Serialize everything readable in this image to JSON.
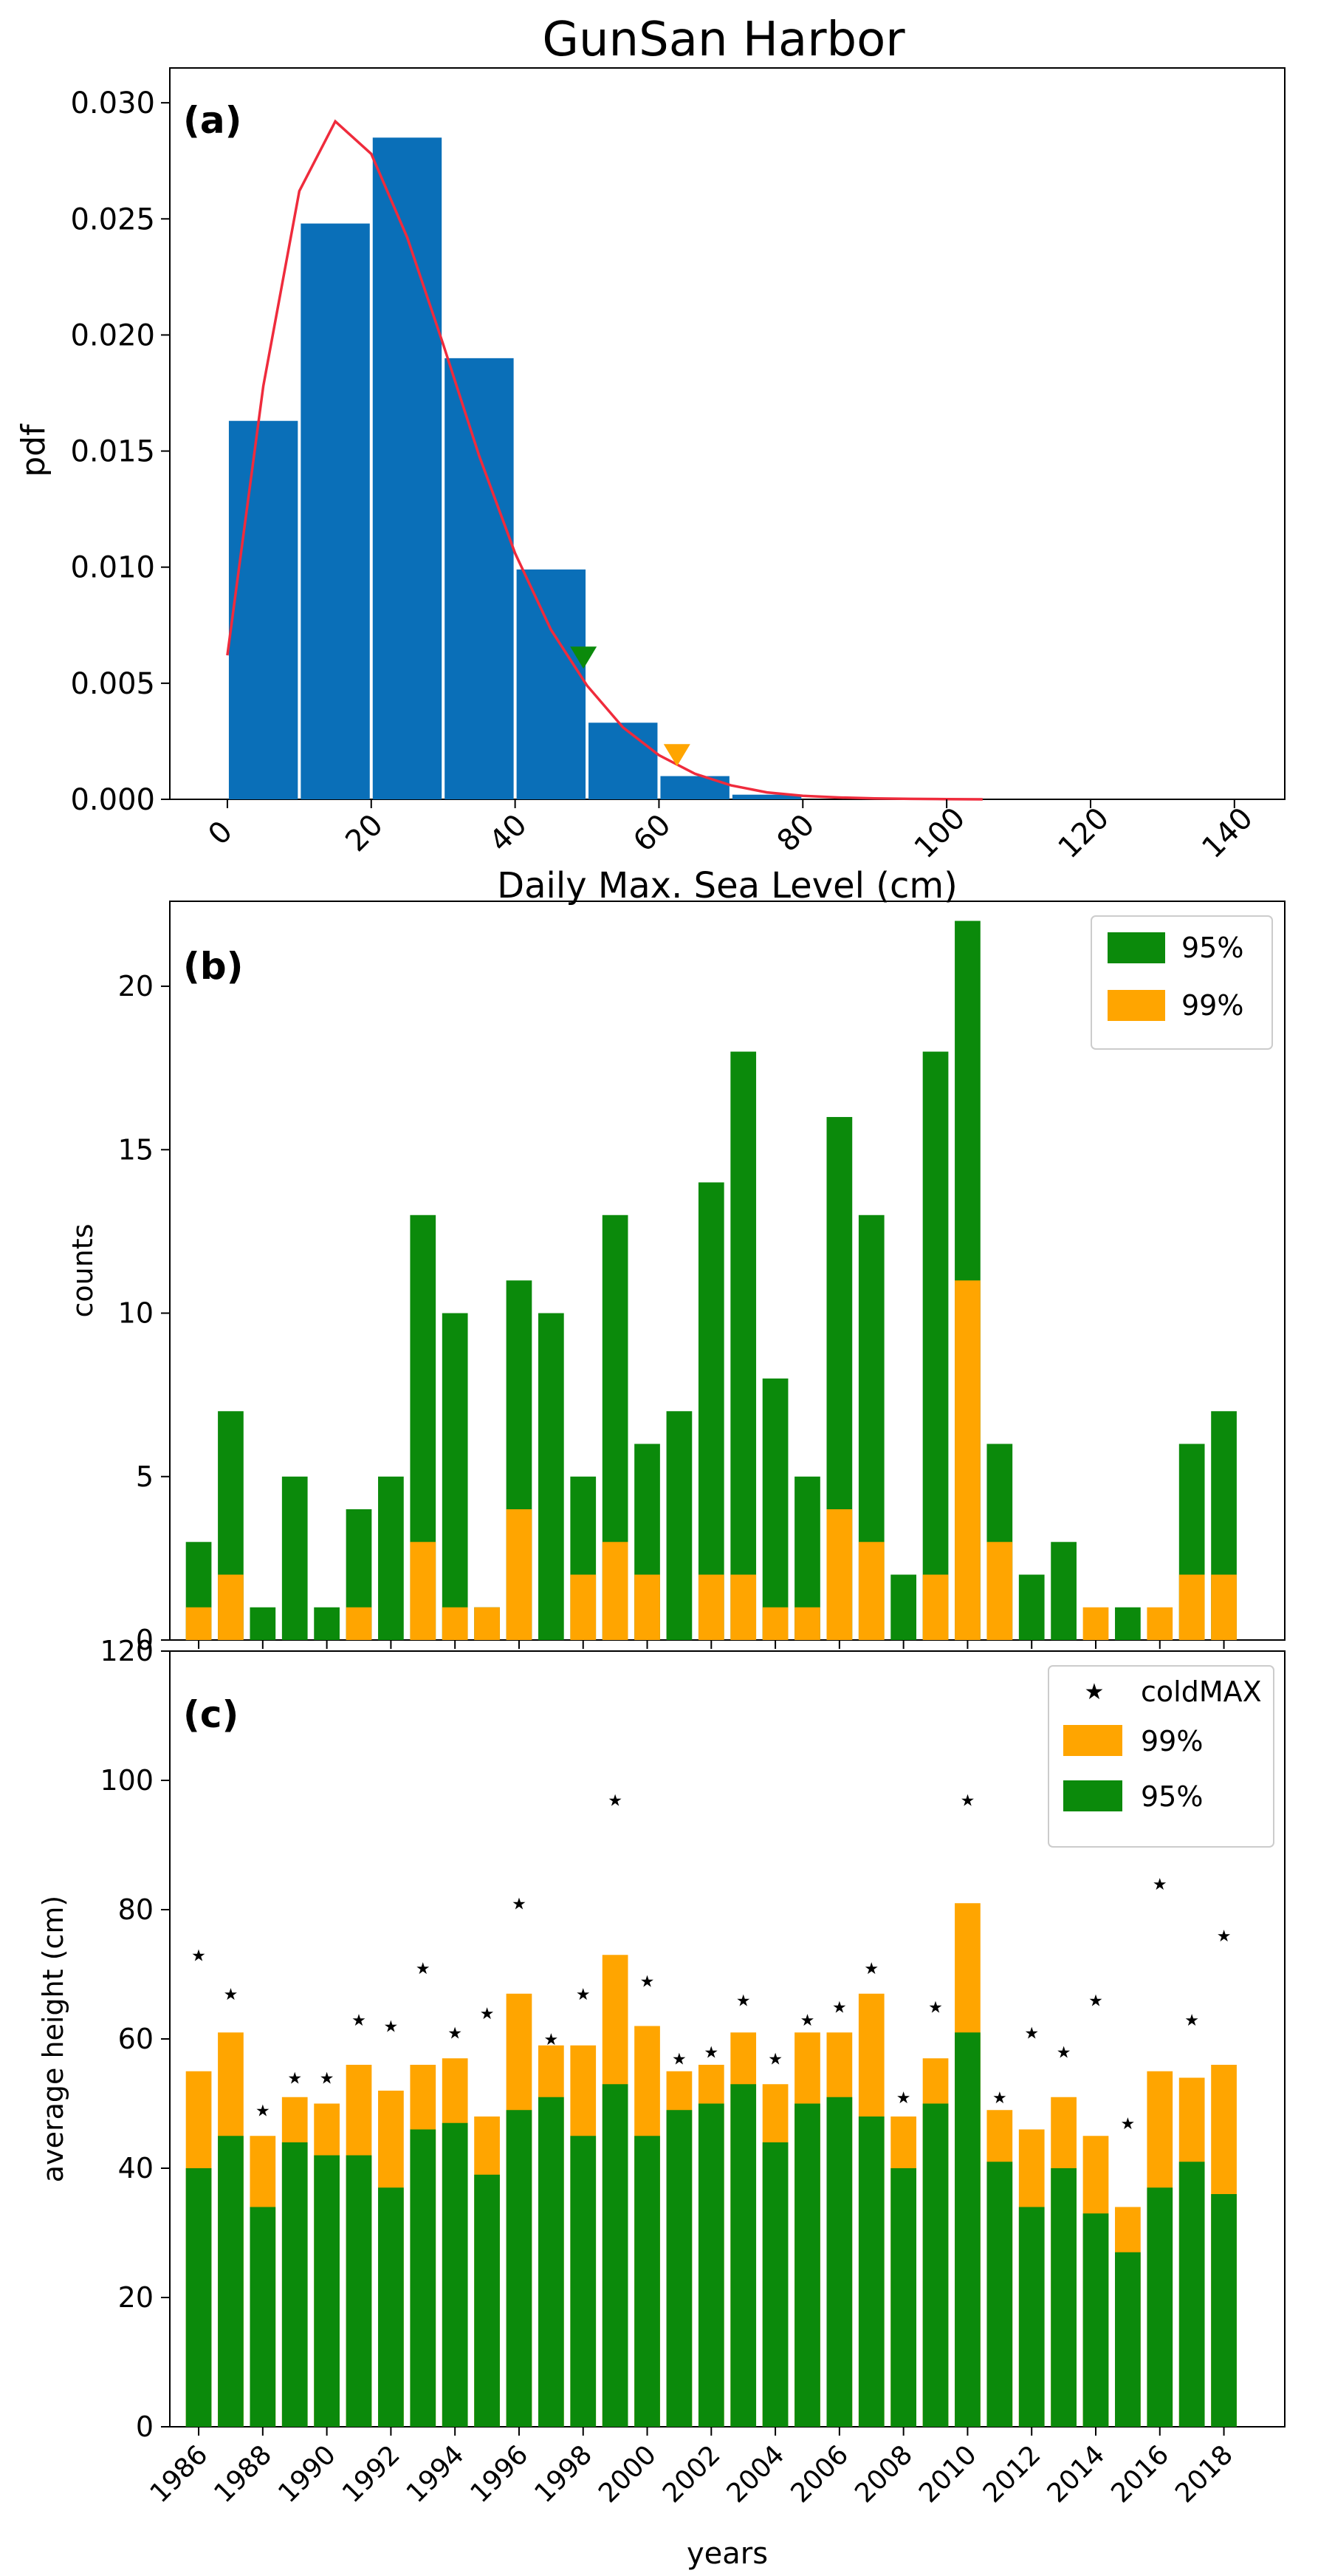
{
  "title": "GunSan Harbor",
  "colors": {
    "hist": "#0a6fb8",
    "curve": "#ef2b3c",
    "green": "#0b8a0b",
    "orange": "#ffa500",
    "star": "#ef1f1f"
  },
  "chart_data": [
    {
      "panel": "a",
      "label": "(a)",
      "type": "bar",
      "xlabel": "Daily Max. Sea Level (cm)",
      "ylabel": "pdf",
      "xlim": [
        -8,
        147
      ],
      "ylim": [
        0,
        0.0315
      ],
      "xticks": [
        "0",
        "20",
        "40",
        "60",
        "80",
        "100",
        "120",
        "140"
      ],
      "xtick_values": [
        0,
        20,
        40,
        60,
        80,
        100,
        120,
        140
      ],
      "yticks": [
        "0.000",
        "0.005",
        "0.010",
        "0.015",
        "0.020",
        "0.025",
        "0.030"
      ],
      "ytick_values": [
        0,
        0.005,
        0.01,
        0.015,
        0.02,
        0.025,
        0.03
      ],
      "bins": [
        {
          "left": 0,
          "right": 10,
          "value": 0.0163
        },
        {
          "left": 10,
          "right": 20,
          "value": 0.0248
        },
        {
          "left": 20,
          "right": 30,
          "value": 0.0285
        },
        {
          "left": 30,
          "right": 40,
          "value": 0.019
        },
        {
          "left": 40,
          "right": 50,
          "value": 0.0099
        },
        {
          "left": 50,
          "right": 60,
          "value": 0.0033
        },
        {
          "left": 60,
          "right": 70,
          "value": 0.001
        },
        {
          "left": 70,
          "right": 80,
          "value": 0.0002
        }
      ],
      "curve": {
        "name": "fitted pdf",
        "x": [
          0,
          5,
          10,
          15,
          20,
          25,
          30,
          35,
          40,
          45,
          50,
          55,
          60,
          65,
          70,
          75,
          80,
          85,
          90,
          95,
          100,
          105
        ],
        "y": [
          0.0062,
          0.0178,
          0.0262,
          0.0292,
          0.0278,
          0.0242,
          0.0196,
          0.0148,
          0.0106,
          0.0073,
          0.0049,
          0.0031,
          0.0019,
          0.0011,
          0.0006,
          0.0003,
          0.00015,
          8e-05,
          4e-05,
          2e-05,
          1e-05,
          0
        ]
      },
      "markers": [
        {
          "name": "95% threshold",
          "x": 49.5,
          "y": 0.0061,
          "color": "green"
        },
        {
          "name": "99% threshold",
          "x": 62.5,
          "y": 0.0019,
          "color": "orange"
        }
      ]
    },
    {
      "panel": "b",
      "label": "(b)",
      "type": "bar",
      "ylabel": "counts",
      "ylim": [
        0,
        22.6
      ],
      "yticks": [
        "0",
        "5",
        "10",
        "15",
        "20"
      ],
      "ytick_values": [
        0,
        5,
        10,
        15,
        20
      ],
      "categories": [
        1986,
        1987,
        1988,
        1989,
        1990,
        1991,
        1992,
        1993,
        1994,
        1995,
        1996,
        1997,
        1998,
        1999,
        2000,
        2001,
        2002,
        2003,
        2004,
        2005,
        2006,
        2007,
        2008,
        2009,
        2010,
        2011,
        2012,
        2013,
        2014,
        2015,
        2016,
        2017,
        2018
      ],
      "legend": [
        "95%",
        "99%"
      ],
      "legend_position": "top-right",
      "series": [
        {
          "name": "95%",
          "color": "green",
          "values": [
            3,
            7,
            1,
            5,
            1,
            4,
            5,
            13,
            10,
            1,
            11,
            10,
            5,
            13,
            6,
            7,
            14,
            18,
            8,
            5,
            16,
            13,
            2,
            18,
            22,
            6,
            2,
            3,
            0,
            1,
            0,
            6,
            7
          ]
        },
        {
          "name": "99%",
          "color": "orange",
          "values": [
            1,
            2,
            0,
            0,
            0,
            1,
            0,
            3,
            1,
            1,
            4,
            0,
            2,
            3,
            2,
            0,
            2,
            2,
            1,
            1,
            4,
            3,
            0,
            2,
            11,
            3,
            0,
            0,
            1,
            0,
            1,
            2,
            2
          ]
        }
      ]
    },
    {
      "panel": "c",
      "label": "(c)",
      "type": "bar",
      "xlabel": "years",
      "ylabel": "average height (cm)",
      "ylim": [
        0,
        120
      ],
      "yticks": [
        "0",
        "20",
        "40",
        "60",
        "80",
        "100",
        "120"
      ],
      "ytick_values": [
        0,
        20,
        40,
        60,
        80,
        100,
        120
      ],
      "xticks": [
        "1986",
        "1988",
        "1990",
        "1992",
        "1994",
        "1996",
        "1998",
        "2000",
        "2002",
        "2004",
        "2006",
        "2008",
        "2010",
        "2012",
        "2014",
        "2016",
        "2018"
      ],
      "xtick_values": [
        1986,
        1988,
        1990,
        1992,
        1994,
        1996,
        1998,
        2000,
        2002,
        2004,
        2006,
        2008,
        2010,
        2012,
        2014,
        2016,
        2018
      ],
      "categories": [
        1986,
        1987,
        1988,
        1989,
        1990,
        1991,
        1992,
        1993,
        1994,
        1995,
        1996,
        1997,
        1998,
        1999,
        2000,
        2001,
        2002,
        2003,
        2004,
        2005,
        2006,
        2007,
        2008,
        2009,
        2010,
        2011,
        2012,
        2013,
        2014,
        2015,
        2016,
        2017,
        2018
      ],
      "legend": [
        "coldMAX",
        "99%",
        "95%"
      ],
      "legend_position": "top-right",
      "series": [
        {
          "name": "99%",
          "color": "orange",
          "values": [
            55,
            61,
            45,
            51,
            50,
            56,
            52,
            56,
            57,
            48,
            67,
            59,
            59,
            73,
            62,
            55,
            56,
            61,
            53,
            61,
            61,
            67,
            48,
            57,
            81,
            49,
            46,
            51,
            45,
            34,
            55,
            54,
            56
          ]
        },
        {
          "name": "95%",
          "color": "green",
          "values": [
            40,
            45,
            34,
            44,
            42,
            42,
            37,
            46,
            47,
            39,
            49,
            51,
            45,
            53,
            45,
            49,
            50,
            53,
            44,
            50,
            51,
            48,
            40,
            50,
            61,
            41,
            34,
            40,
            33,
            27,
            37,
            41,
            36
          ]
        },
        {
          "name": "coldMAX",
          "color": "star",
          "values": [
            73,
            67,
            49,
            54,
            54,
            63,
            62,
            71,
            61,
            64,
            81,
            60,
            67,
            97,
            69,
            57,
            58,
            66,
            57,
            63,
            65,
            71,
            51,
            65,
            97,
            51,
            61,
            58,
            66,
            47,
            84,
            63,
            76
          ]
        }
      ]
    }
  ]
}
